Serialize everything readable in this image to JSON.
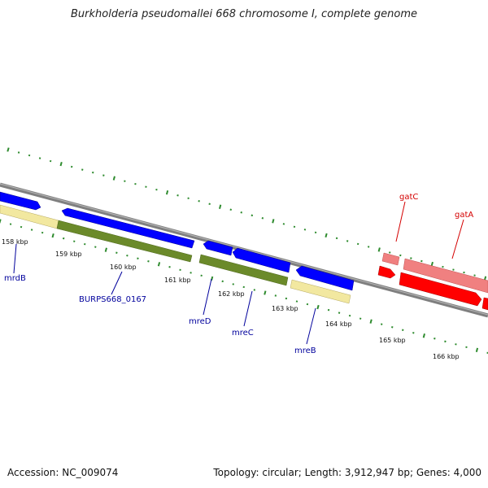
{
  "title": "Burkholderia pseudomallei 668 chromosome I, complete genome",
  "footer": {
    "accession": "Accession: NC_009074",
    "summary": "Topology: circular; Length: 3,912,947 bp; Genes: 4,000"
  },
  "colors": {
    "backbone": "#7f7f7f",
    "forward_cds": "#0000ff",
    "forward_gene": "#f2e8a0",
    "reverse_gene": "#6b8a2a",
    "rna_cds": "#ff0000",
    "rna_gene": "#f08080",
    "tick": "#2e8b2e",
    "label_blue": "#00009c",
    "label_red": "#d40000"
  },
  "ruler": {
    "labels": [
      "158 kbp",
      "159 kbp",
      "160 kbp",
      "161 kbp",
      "162 kbp",
      "163 kbp",
      "164 kbp",
      "165 kbp",
      "166 kbp"
    ]
  },
  "genes": [
    {
      "name": "mrdB",
      "color_role": "label_blue"
    },
    {
      "name": "BURPS668_0167",
      "color_role": "label_blue"
    },
    {
      "name": "mreD",
      "color_role": "label_blue"
    },
    {
      "name": "mreC",
      "color_role": "label_blue"
    },
    {
      "name": "mreB",
      "color_role": "label_blue"
    },
    {
      "name": "gatC",
      "color_role": "label_red"
    },
    {
      "name": "gatA",
      "color_role": "label_red"
    }
  ]
}
